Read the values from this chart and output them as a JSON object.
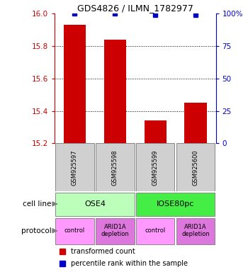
{
  "title": "GDS4826 / ILMN_1782977",
  "samples": [
    "GSM925597",
    "GSM925598",
    "GSM925599",
    "GSM925600"
  ],
  "bar_values": [
    15.93,
    15.84,
    15.34,
    15.45
  ],
  "bar_color": "#cc0000",
  "percentile_values": [
    100,
    100,
    99,
    99
  ],
  "percentile_color": "#0000cc",
  "ylim_left": [
    15.2,
    16.0
  ],
  "ylim_right": [
    0,
    100
  ],
  "yticks_left": [
    15.2,
    15.4,
    15.6,
    15.8,
    16.0
  ],
  "yticks_right": [
    0,
    25,
    50,
    75,
    100
  ],
  "ytick_labels_right": [
    "0",
    "25",
    "50",
    "75",
    "100%"
  ],
  "cell_line_groups": [
    {
      "label": "OSE4",
      "span": [
        0,
        2
      ],
      "color": "#bbffbb"
    },
    {
      "label": "IOSE80pc",
      "span": [
        2,
        4
      ],
      "color": "#44ee44"
    }
  ],
  "protocol_groups": [
    {
      "label": "control",
      "span": [
        0,
        1
      ],
      "color": "#ff99ff"
    },
    {
      "label": "ARID1A\ndepletion",
      "span": [
        1,
        2
      ],
      "color": "#dd77dd"
    },
    {
      "label": "control",
      "span": [
        2,
        3
      ],
      "color": "#ff99ff"
    },
    {
      "label": "ARID1A\ndepletion",
      "span": [
        3,
        4
      ],
      "color": "#dd77dd"
    }
  ],
  "legend_items": [
    {
      "label": "transformed count",
      "color": "#cc0000"
    },
    {
      "label": "percentile rank within the sample",
      "color": "#0000cc"
    }
  ],
  "left_tick_color": "#cc0000",
  "right_tick_color": "#0000cc",
  "bar_bottom": 15.2,
  "sample_box_color": "#d0d0d0",
  "cell_line_label": "cell line",
  "protocol_label": "protocol",
  "bar_width": 0.55
}
